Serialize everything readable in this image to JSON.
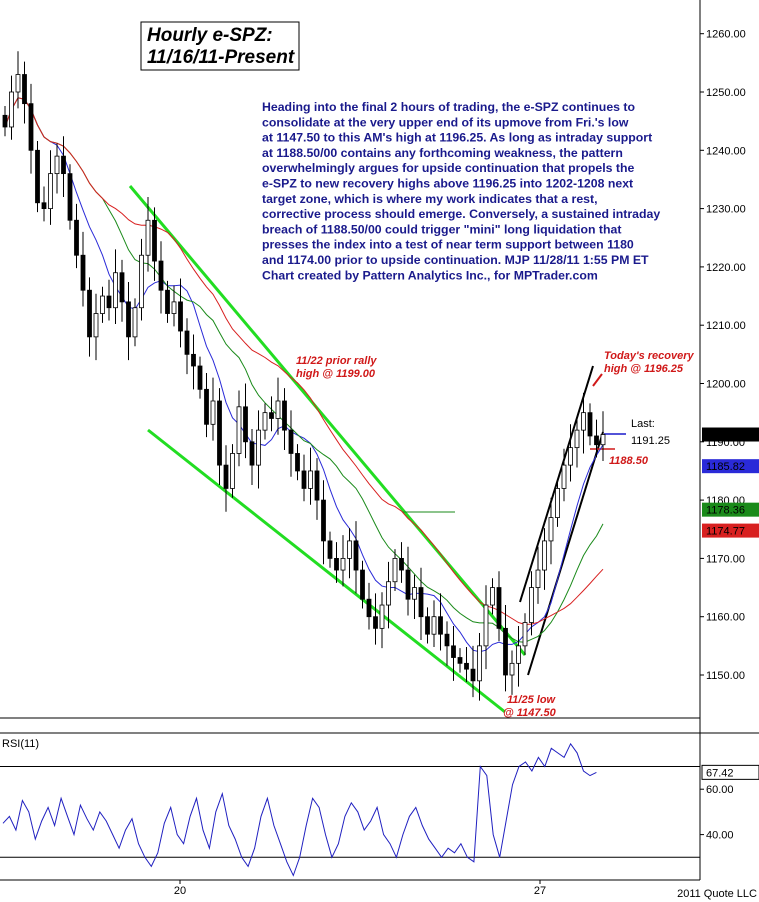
{
  "chart_data": [
    {
      "type": "candlestick",
      "title": "Hourly e-SPZ:",
      "subtitle": "11/16/11-Present",
      "commentary": [
        "Heading into the final 2 hours of trading, the e-SPZ continues to",
        "consolidate at the very upper end of its upmove from Fri.'s low",
        "at 1147.50 to this AM's high at 1196.25. As long as intraday support",
        "at 1188.50/00 contains any forthcoming weakness, the pattern",
        "overwhelmingly argues for upside continuation that propels the",
        "e-SPZ to new recovery highs above 1196.25 into 1202-1208 next",
        "target zone, which is where my work indicates that a rest,",
        "corrective process should emerge. Conversely, a sustained intraday",
        "breach of 1188.50/00 could trigger \"mini\" long liquidation that",
        "presses the index into a test of near term support between 1180",
        "and 1174.00 prior to upside continuation. MJP 11/28/11 1:55 PM ET",
        "Chart created by Pattern Analytics Inc., for MPTrader.com"
      ],
      "ylim": [
        1140,
        1265
      ],
      "y_ticks": [
        "1150.00",
        "1160.00",
        "1170.00",
        "1180.00",
        "1190.00",
        "1200.00",
        "1210.00",
        "1220.00",
        "1230.00",
        "1240.00",
        "1250.00",
        "1260.00"
      ],
      "x_ticks": [
        "20",
        "27"
      ],
      "series": [
        {
          "kind": "price",
          "closes": [
            1244,
            1250,
            1253,
            1248,
            1240,
            1231,
            1230,
            1236,
            1239,
            1236,
            1228,
            1222,
            1216,
            1208,
            1212,
            1215,
            1213,
            1219,
            1214,
            1208,
            1213,
            1222,
            1228,
            1221,
            1216,
            1212,
            1214,
            1209,
            1205,
            1203,
            1199,
            1193,
            1197,
            1186,
            1182,
            1188,
            1196,
            1190,
            1186,
            1192,
            1195,
            1194,
            1197,
            1192,
            1188,
            1185,
            1182,
            1185,
            1180,
            1173,
            1170,
            1168,
            1170,
            1173,
            1168,
            1163,
            1160,
            1158,
            1162,
            1166,
            1170,
            1168,
            1163,
            1165,
            1160,
            1157,
            1160,
            1157,
            1155,
            1153,
            1152,
            1151,
            1149,
            1155,
            1162,
            1165,
            1158,
            1150,
            1152,
            1155,
            1159,
            1165,
            1168,
            1173,
            1177,
            1182,
            1186,
            1189,
            1192,
            1195,
            1191,
            1189.5,
            1191.25
          ]
        },
        {
          "kind": "ma",
          "name": "",
          "color": "#2a2ad8",
          "value_last": "1185.82"
        },
        {
          "kind": "ma",
          "name": "",
          "color": "#1a8a1a",
          "value_last": "1178.36"
        },
        {
          "kind": "ma",
          "name": "",
          "color": "#d82020",
          "value_last": "1174.77"
        }
      ],
      "price_tags": [
        {
          "text": "1191.25",
          "value": 1191.25,
          "bg": "#000000",
          "fg": "#ffffff"
        },
        {
          "text": "1185.82",
          "value": 1185.82,
          "bg": "#2a2ad8",
          "fg": "#ffffff"
        },
        {
          "text": "1178.36",
          "value": 1178.36,
          "bg": "#1a8a1a",
          "fg": "#ffffff"
        },
        {
          "text": "1174.77",
          "value": 1174.77,
          "bg": "#d82020",
          "fg": "#ffffff"
        }
      ],
      "annotations": [
        {
          "lines": [
            "11/22 prior rally",
            "high @ 1199.00"
          ],
          "color": "#d01818"
        },
        {
          "lines": [
            "Today's recovery",
            "high @ 1196.25"
          ],
          "color": "#d01818"
        },
        {
          "lines": [
            "Last:",
            "1191.25"
          ],
          "color": "#1a1acc"
        },
        {
          "lines": [
            "1188.50"
          ],
          "color": "#d01818"
        },
        {
          "lines": [
            "11/25 low",
            "@ 1147.50"
          ],
          "color": "#d01818"
        }
      ]
    },
    {
      "type": "line",
      "title": "RSI(11)",
      "ylim": [
        20,
        85
      ],
      "y_ticks": [
        "40.00",
        "60.00"
      ],
      "levels": [
        30,
        70
      ],
      "last_value": "67.42",
      "color": "#2020c0",
      "values": [
        45,
        48,
        42,
        55,
        50,
        38,
        46,
        52,
        44,
        56,
        48,
        40,
        53,
        47,
        42,
        50,
        46,
        40,
        34,
        42,
        47,
        36,
        30,
        26,
        32,
        45,
        52,
        40,
        36,
        48,
        56,
        42,
        34,
        50,
        58,
        44,
        38,
        30,
        26,
        34,
        48,
        56,
        44,
        36,
        28,
        22,
        30,
        44,
        56,
        52,
        40,
        30,
        36,
        48,
        54,
        50,
        42,
        46,
        52,
        40,
        36,
        30,
        40,
        48,
        52,
        44,
        38,
        34,
        30,
        34,
        32,
        36,
        30,
        28,
        70,
        66,
        40,
        30,
        46,
        62,
        70,
        72,
        68,
        74,
        70,
        78,
        76,
        74,
        80,
        76,
        68,
        66,
        67.42
      ]
    }
  ],
  "footer": {
    "copyright": "2011 Quote LLC"
  }
}
